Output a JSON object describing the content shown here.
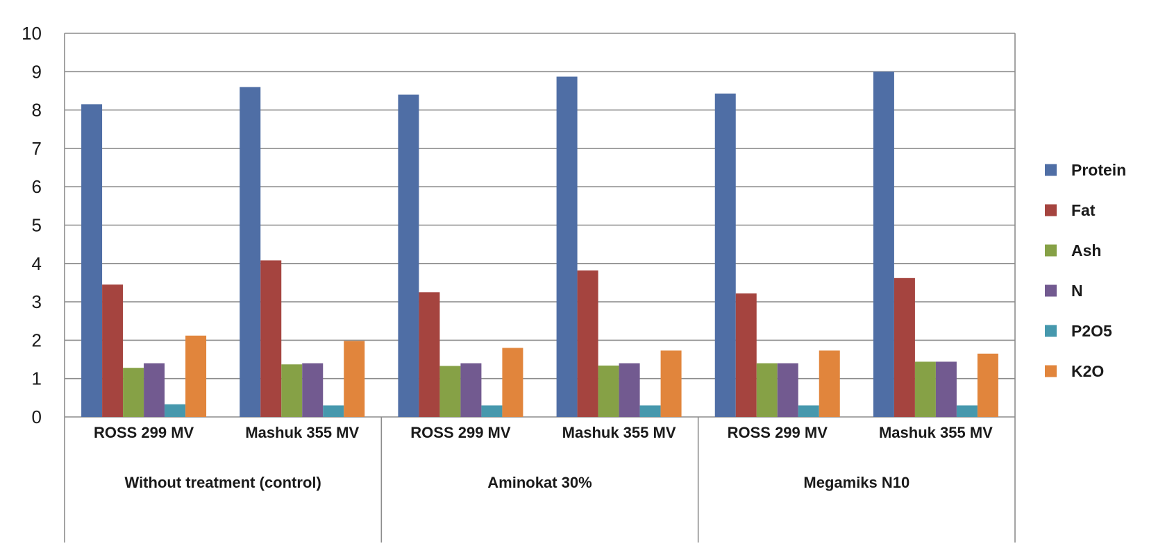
{
  "chart_data": {
    "type": "bar",
    "title": "",
    "xlabel": "",
    "ylabel": "",
    "ylim": [
      0,
      10
    ],
    "yticks": [
      "0",
      "1",
      "2",
      "3",
      "4",
      "5",
      "6",
      "7",
      "8",
      "9",
      "10"
    ],
    "grid": true,
    "legend_position": "right",
    "groups": [
      {
        "label": "Without treatment (control)",
        "categories": [
          "ROSS 299 MV",
          "Mashuk 355 MV"
        ]
      },
      {
        "label": "Aminokat 30%",
        "categories": [
          "ROSS 299 MV",
          "Mashuk 355 MV"
        ]
      },
      {
        "label": "Megamiks N10",
        "categories": [
          "ROSS 299 MV",
          "Mashuk 355 MV"
        ]
      }
    ],
    "categories": [
      "ROSS 299 MV",
      "Mashuk 355 MV",
      "ROSS 299 MV",
      "Mashuk 355 MV",
      "ROSS 299 MV",
      "Mashuk 355 MV"
    ],
    "series": [
      {
        "name": "Protein",
        "color": "#4f6ea5",
        "values": [
          8.15,
          8.6,
          8.4,
          8.87,
          8.43,
          9.0
        ]
      },
      {
        "name": "Fat",
        "color": "#a5443f",
        "values": [
          3.45,
          4.08,
          3.25,
          3.82,
          3.22,
          3.62
        ]
      },
      {
        "name": "Ash",
        "color": "#86a146",
        "values": [
          1.28,
          1.37,
          1.33,
          1.34,
          1.4,
          1.44
        ]
      },
      {
        "name": "N",
        "color": "#725a90",
        "values": [
          1.4,
          1.4,
          1.4,
          1.4,
          1.4,
          1.44
        ]
      },
      {
        "name": "P2O5",
        "color": "#4698ad",
        "values": [
          0.33,
          0.3,
          0.3,
          0.3,
          0.3,
          0.3
        ]
      },
      {
        "name": "K2O",
        "color": "#e1853c",
        "values": [
          2.12,
          1.98,
          1.8,
          1.73,
          1.73,
          1.65
        ]
      }
    ]
  }
}
